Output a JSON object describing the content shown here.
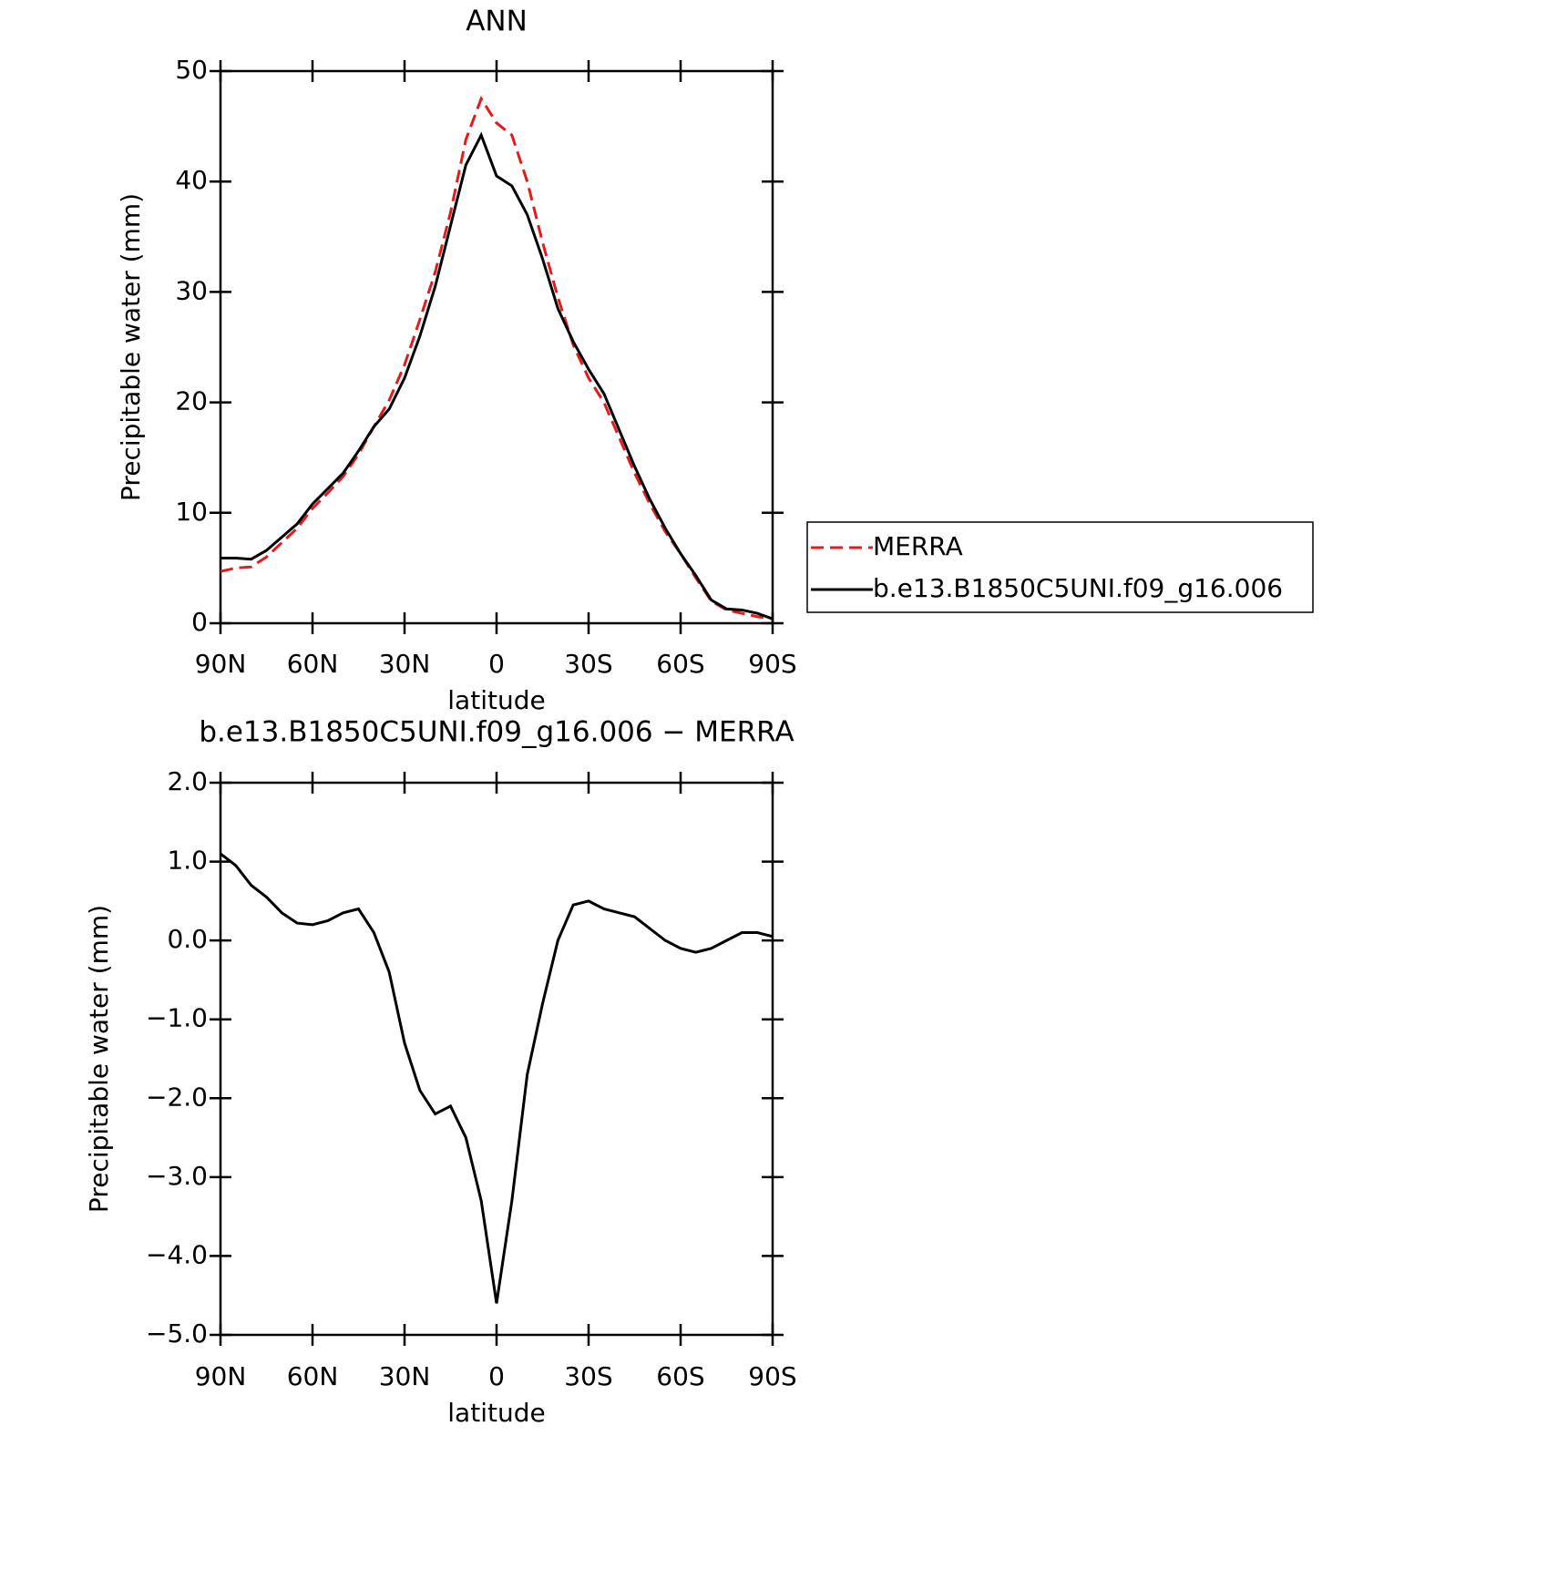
{
  "chart_data": [
    {
      "type": "line",
      "title": "ANN",
      "xlabel": "latitude",
      "ylabel": "Precipitable water (mm)",
      "x": [
        90,
        85,
        80,
        75,
        70,
        65,
        60,
        55,
        50,
        45,
        40,
        35,
        30,
        25,
        20,
        15,
        10,
        5,
        0,
        -5,
        -10,
        -15,
        -20,
        -25,
        -30,
        -35,
        -40,
        -45,
        -50,
        -55,
        -60,
        -65,
        -70,
        -75,
        -80,
        -85,
        -90
      ],
      "xlim": [
        90,
        -90
      ],
      "xticks": [
        {
          "value": 90,
          "label": "90N"
        },
        {
          "value": 60,
          "label": "60N"
        },
        {
          "value": 30,
          "label": "30N"
        },
        0,
        {
          "value": -30,
          "label": "30S"
        },
        {
          "value": -60,
          "label": "60S"
        },
        {
          "value": -90,
          "label": "90S"
        }
      ],
      "ylim": [
        0,
        50
      ],
      "yticks": [
        0,
        10,
        20,
        30,
        40,
        50
      ],
      "legend": "right",
      "series": [
        {
          "name": "MERRA",
          "color": "#e41a1c",
          "dash": true,
          "values": [
            4.7,
            5.0,
            5.1,
            6.0,
            7.3,
            8.6,
            10.4,
            11.8,
            13.3,
            15.3,
            17.8,
            20.2,
            23.4,
            27.5,
            31.8,
            37.2,
            43.8,
            47.5,
            45.3,
            44.2,
            40.0,
            34.5,
            29.5,
            25.2,
            22.2,
            20.0,
            16.8,
            13.6,
            10.8,
            8.3,
            6.3,
            4.1,
            2.0,
            1.2,
            0.9,
            0.6,
            0.4
          ]
        },
        {
          "name": "b.e13.B1850C5UNI.f09_g16.006",
          "color": "#000000",
          "dash": false,
          "values": [
            5.9,
            5.9,
            5.8,
            6.6,
            7.8,
            9.0,
            10.8,
            12.2,
            13.6,
            15.6,
            17.8,
            19.4,
            22.2,
            26.0,
            30.5,
            36.0,
            41.5,
            44.2,
            40.5,
            39.6,
            37.0,
            33.0,
            28.5,
            25.5,
            23.0,
            20.8,
            17.5,
            14.2,
            11.2,
            8.6,
            6.3,
            4.3,
            2.1,
            1.3,
            1.2,
            0.9,
            0.4
          ]
        }
      ]
    },
    {
      "type": "line",
      "title": "b.e13.B1850C5UNI.f09_g16.006 − MERRA",
      "xlabel": "latitude",
      "ylabel": "Precipitable water (mm)",
      "x": [
        90,
        85,
        80,
        75,
        70,
        65,
        60,
        55,
        50,
        45,
        40,
        35,
        30,
        25,
        20,
        15,
        10,
        5,
        0,
        -5,
        -10,
        -15,
        -20,
        -25,
        -30,
        -35,
        -40,
        -45,
        -50,
        -55,
        -60,
        -65,
        -70,
        -75,
        -80,
        -85,
        -90
      ],
      "xlim": [
        90,
        -90
      ],
      "xticks": [
        {
          "value": 90,
          "label": "90N"
        },
        {
          "value": 60,
          "label": "60N"
        },
        {
          "value": 30,
          "label": "30N"
        },
        0,
        {
          "value": -30,
          "label": "30S"
        },
        {
          "value": -60,
          "label": "60S"
        },
        {
          "value": -90,
          "label": "90S"
        }
      ],
      "ylim": [
        -5,
        2
      ],
      "yticks": [
        {
          "value": -5,
          "label": "−5.0"
        },
        {
          "value": -4,
          "label": "−4.0"
        },
        {
          "value": -3,
          "label": "−3.0"
        },
        {
          "value": -2,
          "label": "−2.0"
        },
        {
          "value": -1,
          "label": "−1.0"
        },
        {
          "value": 0,
          "label": "0.0"
        },
        {
          "value": 1,
          "label": "1.0"
        },
        {
          "value": 2,
          "label": "2.0"
        }
      ],
      "color": "#000000",
      "values": [
        1.1,
        0.95,
        0.7,
        0.55,
        0.35,
        0.22,
        0.2,
        0.25,
        0.35,
        0.4,
        0.1,
        -0.4,
        -1.3,
        -1.9,
        -2.2,
        -2.1,
        -2.5,
        -3.3,
        -4.6,
        -3.3,
        -1.7,
        -0.8,
        0.0,
        0.45,
        0.5,
        0.4,
        0.35,
        0.3,
        0.15,
        0.0,
        -0.1,
        -0.15,
        -0.1,
        0.0,
        0.1,
        0.1,
        0.05
      ]
    }
  ]
}
